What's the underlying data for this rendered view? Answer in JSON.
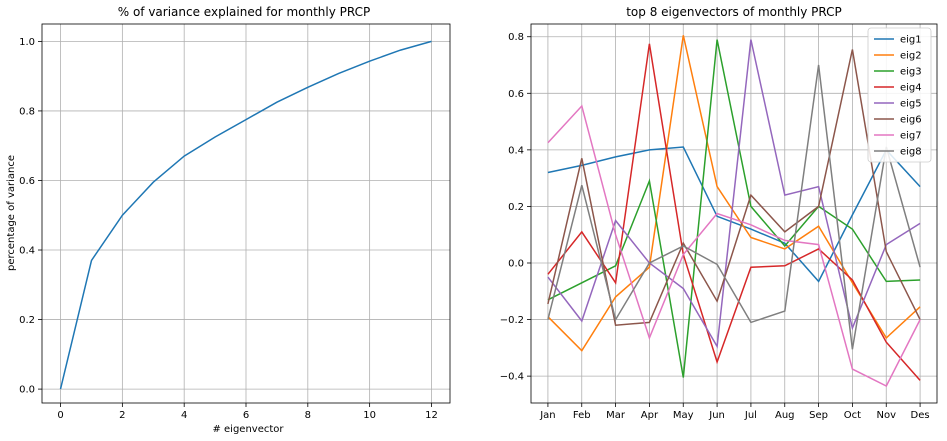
{
  "chart_data": [
    {
      "type": "line",
      "title": "% of variance explained for monthly PRCP",
      "xlabel": "# eigenvector",
      "ylabel": "percentage of variance",
      "xlim": [
        -0.6,
        12.6
      ],
      "ylim": [
        -0.04,
        1.05
      ],
      "xticks": [
        0,
        2,
        4,
        6,
        8,
        10,
        12
      ],
      "yticks": [
        0.0,
        0.2,
        0.4,
        0.6,
        0.8,
        1.0
      ],
      "ytick_labels": [
        "0.0",
        "0.2",
        "0.4",
        "0.6",
        "0.8",
        "1.0"
      ],
      "grid": true,
      "x": [
        0,
        1,
        2,
        3,
        4,
        5,
        6,
        7,
        8,
        9,
        10,
        11,
        12
      ],
      "series": [
        {
          "color": "#1f77b4",
          "values": [
            0.0,
            0.37,
            0.5,
            0.595,
            0.67,
            0.725,
            0.775,
            0.825,
            0.868,
            0.908,
            0.943,
            0.975,
            1.0
          ]
        }
      ]
    },
    {
      "type": "line",
      "title": "top 8 eigenvectors of monthly PRCP",
      "xlabel": "",
      "ylabel": "",
      "categories": [
        "Jan",
        "Feb",
        "Mar",
        "Apr",
        "May",
        "Jun",
        "Jul",
        "Aug",
        "Sep",
        "Oct",
        "Nov",
        "Des"
      ],
      "ylim": [
        -0.495,
        0.845
      ],
      "yticks": [
        -0.4,
        -0.2,
        0.0,
        0.2,
        0.4,
        0.6,
        0.8
      ],
      "ytick_labels": [
        "−0.4",
        "−0.2",
        "0.0",
        "0.2",
        "0.4",
        "0.6",
        "0.8"
      ],
      "grid": true,
      "legend_position": "top-right",
      "series": [
        {
          "name": "eig1",
          "color": "#1f77b4",
          "values": [
            0.32,
            0.345,
            0.375,
            0.4,
            0.41,
            0.165,
            0.12,
            0.07,
            -0.065,
            0.17,
            0.4,
            0.27
          ]
        },
        {
          "name": "eig2",
          "color": "#ff7f0e",
          "values": [
            -0.19,
            -0.31,
            -0.12,
            -0.015,
            0.805,
            0.27,
            0.09,
            0.05,
            0.13,
            -0.07,
            -0.265,
            -0.155
          ]
        },
        {
          "name": "eig3",
          "color": "#2ca02c",
          "values": [
            -0.13,
            -0.07,
            -0.01,
            0.29,
            -0.405,
            0.79,
            0.2,
            0.06,
            0.2,
            0.12,
            -0.065,
            -0.06
          ]
        },
        {
          "name": "eig4",
          "color": "#d62728",
          "values": [
            -0.04,
            0.11,
            -0.07,
            0.775,
            0.03,
            -0.35,
            -0.015,
            -0.01,
            0.05,
            -0.06,
            -0.28,
            -0.415
          ]
        },
        {
          "name": "eig5",
          "color": "#9467bd",
          "values": [
            -0.05,
            -0.205,
            0.15,
            0.0,
            -0.09,
            -0.295,
            0.79,
            0.24,
            0.27,
            -0.23,
            0.065,
            0.14
          ]
        },
        {
          "name": "eig6",
          "color": "#8c564b",
          "values": [
            -0.145,
            0.37,
            -0.22,
            -0.21,
            0.07,
            -0.135,
            0.24,
            0.11,
            0.2,
            0.755,
            0.04,
            -0.2
          ]
        },
        {
          "name": "eig7",
          "color": "#e377c2",
          "values": [
            0.425,
            0.555,
            0.1,
            -0.265,
            0.03,
            0.175,
            0.135,
            0.08,
            0.065,
            -0.375,
            -0.435,
            -0.2
          ]
        },
        {
          "name": "eig8",
          "color": "#7f7f7f",
          "values": [
            -0.2,
            0.275,
            -0.2,
            0.0,
            0.06,
            -0.005,
            -0.21,
            -0.17,
            0.7,
            -0.305,
            0.41,
            -0.015
          ]
        }
      ]
    }
  ]
}
